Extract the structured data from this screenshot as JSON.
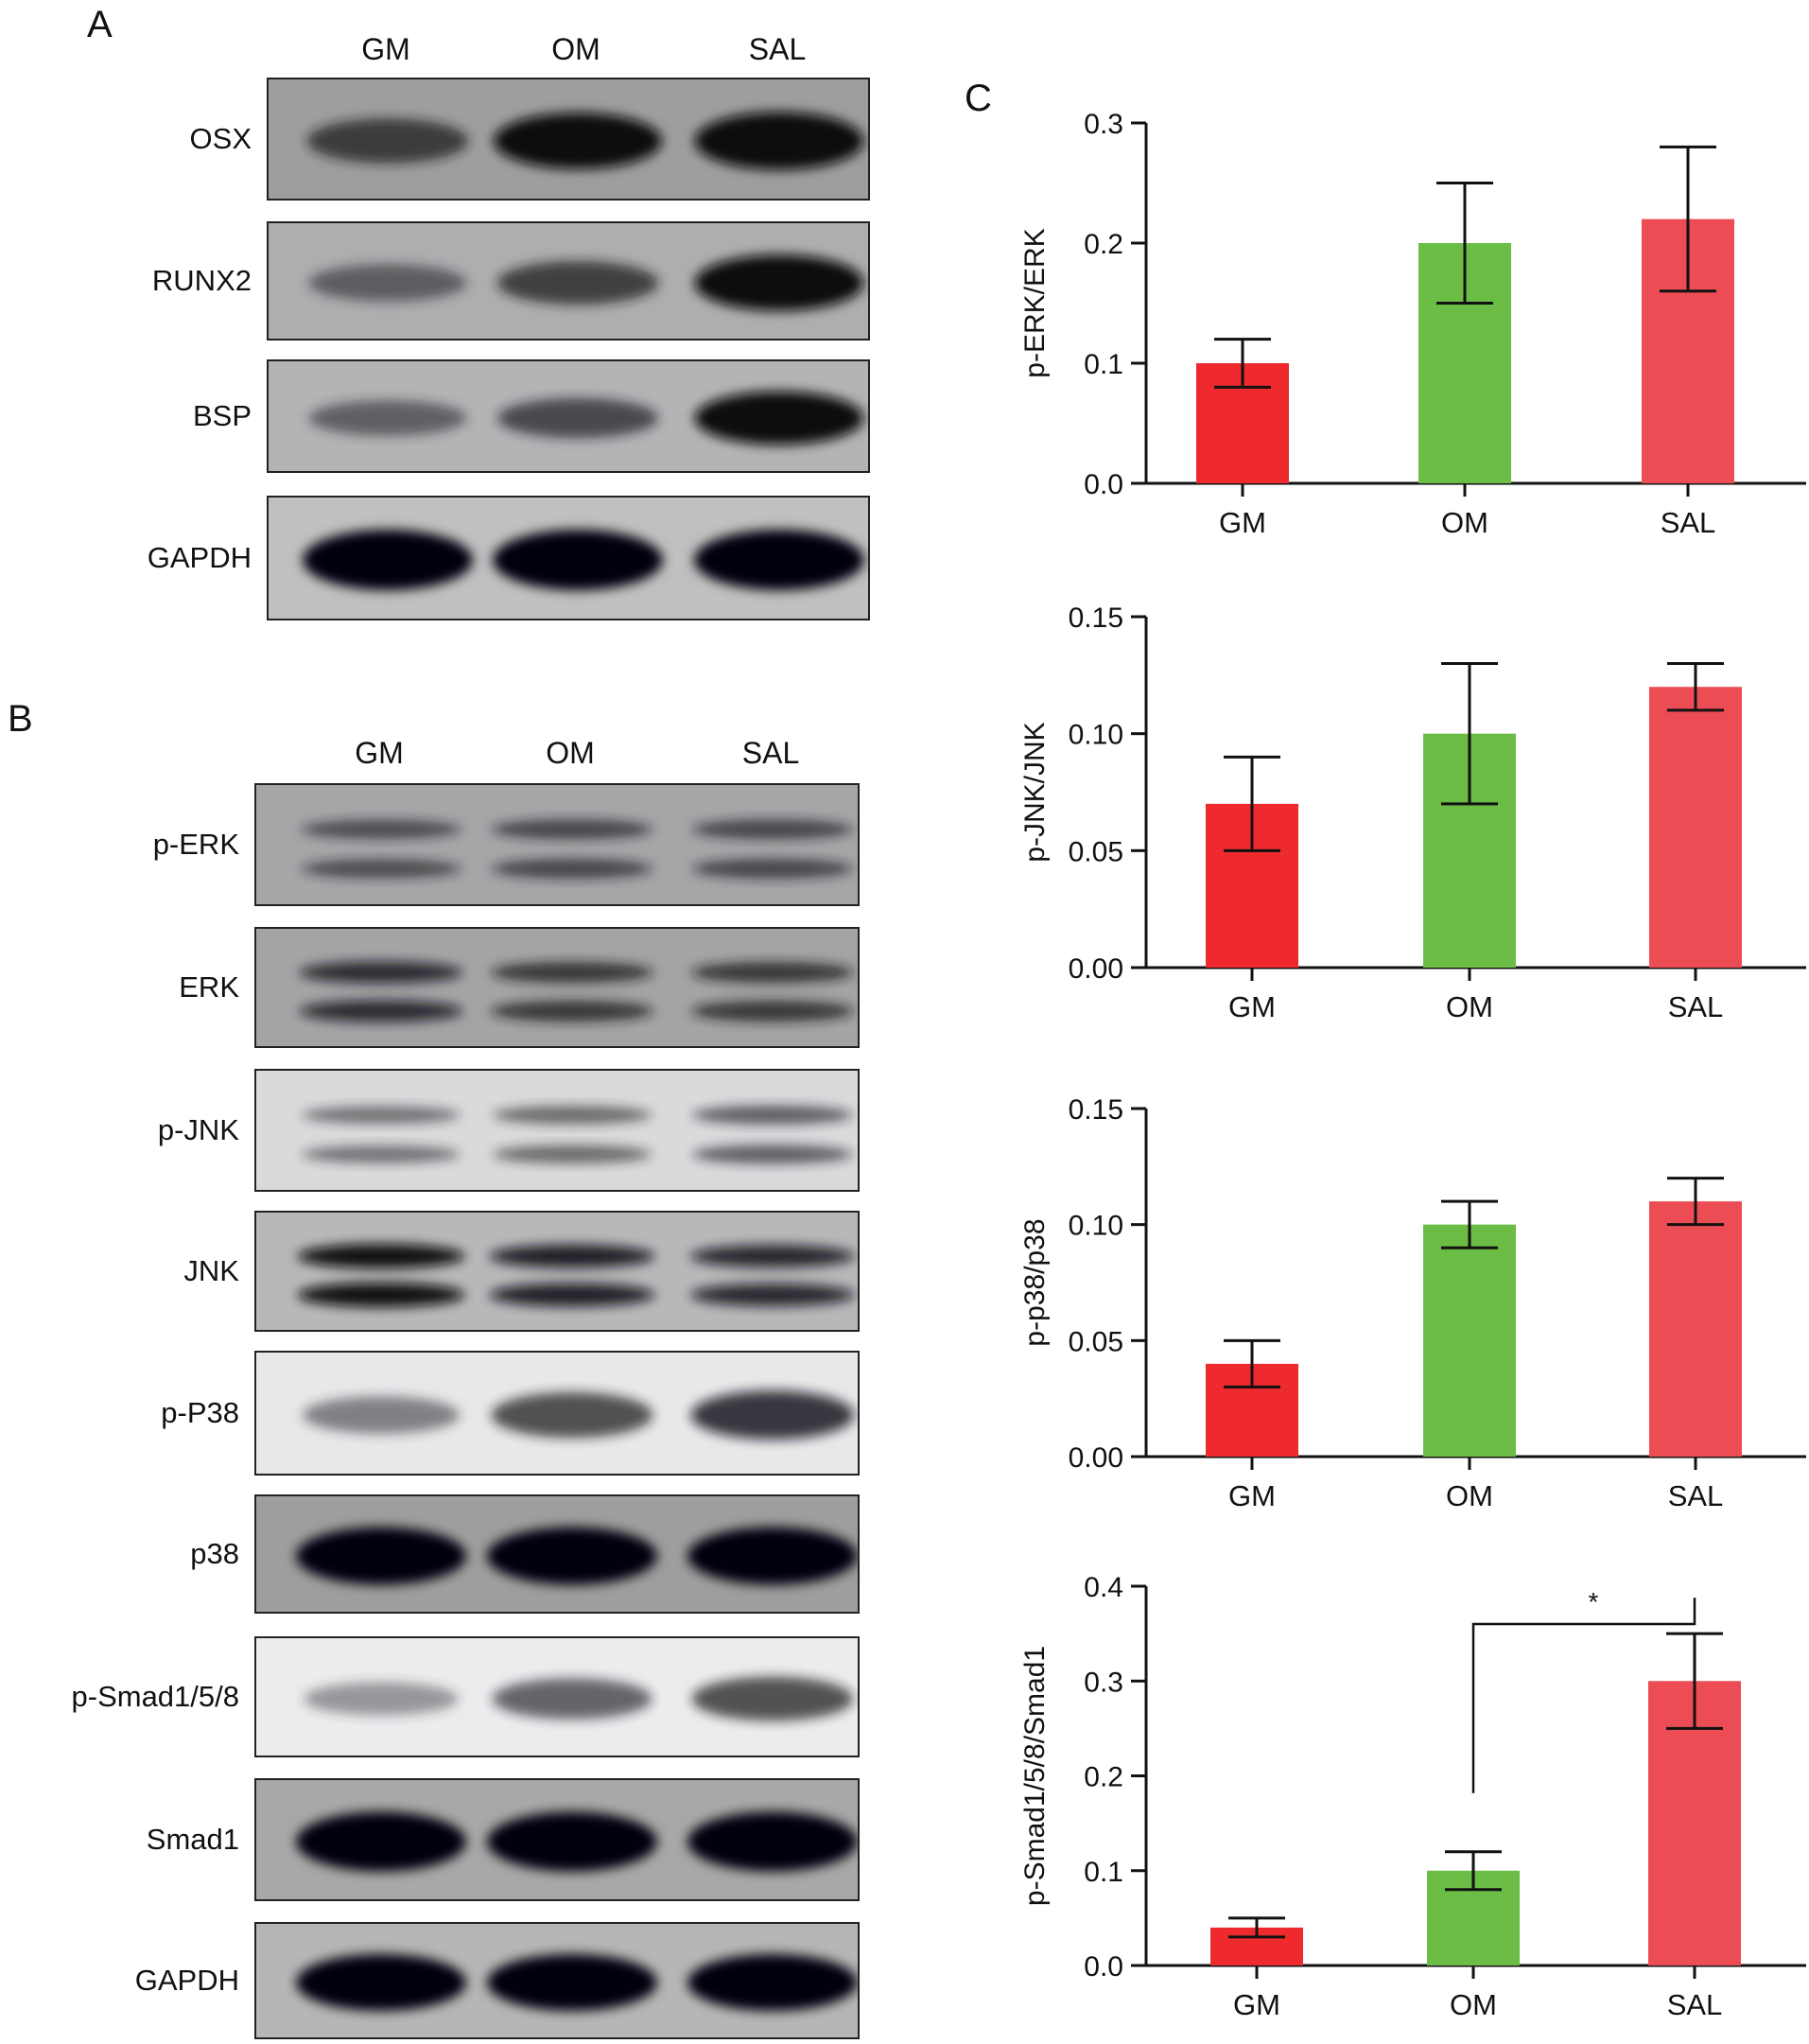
{
  "panels": {
    "a": "A",
    "b": "B",
    "c": "C"
  },
  "lanes": [
    "GM",
    "OM",
    "SAL"
  ],
  "blots_a": [
    {
      "label": "OSX",
      "bg": "#9e9ea0",
      "bands": [
        0.55,
        0.9,
        0.95
      ],
      "rows": 1
    },
    {
      "label": "RUNX2",
      "bg": "#aeaeb0",
      "bands": [
        0.35,
        0.55,
        0.95
      ],
      "rows": 1
    },
    {
      "label": "BSP",
      "bg": "#b4b4b6",
      "bands": [
        0.35,
        0.5,
        0.95
      ],
      "rows": 1
    },
    {
      "label": "GAPDH",
      "bg": "#c0c0c2",
      "bands": [
        1.0,
        1.0,
        1.0
      ],
      "rows": 1
    }
  ],
  "blots_b": [
    {
      "label": "p-ERK",
      "bg": "#a6a6a8",
      "bands": [
        0.45,
        0.5,
        0.5
      ],
      "rows": 2
    },
    {
      "label": "ERK",
      "bg": "#a4a4a6",
      "bands": [
        0.65,
        0.6,
        0.6
      ],
      "rows": 2
    },
    {
      "label": "p-JNK",
      "bg": "#dadadc",
      "bands": [
        0.35,
        0.4,
        0.45
      ],
      "rows": 2
    },
    {
      "label": "JNK",
      "bg": "#b8b8ba",
      "bands": [
        0.85,
        0.75,
        0.7
      ],
      "rows": 2
    },
    {
      "label": "p-P38",
      "bg": "#e8e8ea",
      "bands": [
        0.3,
        0.55,
        0.65
      ],
      "rows": 1
    },
    {
      "label": "p38",
      "bg": "#9e9ea0",
      "bands": [
        1.0,
        1.0,
        1.0
      ],
      "rows": 1
    },
    {
      "label": "p-Smad1/5/8",
      "bg": "#ececee",
      "bands": [
        0.2,
        0.45,
        0.55
      ],
      "rows": 1
    },
    {
      "label": "Smad1",
      "bg": "#a8a8aa",
      "bands": [
        1.0,
        1.0,
        1.0
      ],
      "rows": 1
    },
    {
      "label": "GAPDH",
      "bg": "#b6b6b8",
      "bands": [
        1.0,
        1.0,
        1.0
      ],
      "rows": 1
    }
  ],
  "colors": {
    "GM": "#ee2a2e",
    "OM": "#6cbd45",
    "SAL": "#ec4d55"
  },
  "chart_data": [
    {
      "type": "bar",
      "categories": [
        "GM",
        "OM",
        "SAL"
      ],
      "values": [
        0.1,
        0.2,
        0.22
      ],
      "errors": [
        0.02,
        0.05,
        0.06
      ],
      "ylabel": "p-ERK/ERK",
      "ylim": [
        0,
        0.3
      ],
      "yticks": [
        "0.0",
        "0.1",
        "0.2",
        "0.3"
      ],
      "yticks_values": [
        0,
        0.1,
        0.2,
        0.3
      ],
      "significance": null
    },
    {
      "type": "bar",
      "categories": [
        "GM",
        "OM",
        "SAL"
      ],
      "values": [
        0.07,
        0.1,
        0.12
      ],
      "errors": [
        0.02,
        0.03,
        0.01
      ],
      "ylabel": "p-JNK/JNK",
      "ylim": [
        0,
        0.15
      ],
      "yticks": [
        "0.00",
        "0.05",
        "0.10",
        "0.15"
      ],
      "yticks_values": [
        0,
        0.05,
        0.1,
        0.15
      ],
      "significance": null
    },
    {
      "type": "bar",
      "categories": [
        "GM",
        "OM",
        "SAL"
      ],
      "values": [
        0.04,
        0.1,
        0.11
      ],
      "errors": [
        0.01,
        0.01,
        0.01
      ],
      "ylabel": "p-p38/p38",
      "ylim": [
        0,
        0.15
      ],
      "yticks": [
        "0.00",
        "0.05",
        "0.10",
        "0.15"
      ],
      "yticks_values": [
        0,
        0.05,
        0.1,
        0.15
      ],
      "significance": null
    },
    {
      "type": "bar",
      "categories": [
        "GM",
        "OM",
        "SAL"
      ],
      "values": [
        0.04,
        0.1,
        0.3
      ],
      "errors": [
        0.01,
        0.02,
        0.05
      ],
      "ylabel": "p-Smad1/5/8/Smad1",
      "ylim": [
        0,
        0.4
      ],
      "yticks": [
        "0.0",
        "0.1",
        "0.2",
        "0.3",
        "0.4"
      ],
      "yticks_values": [
        0,
        0.1,
        0.2,
        0.3,
        0.4
      ],
      "significance": {
        "from": "OM",
        "to": "SAL",
        "label": "*"
      }
    }
  ]
}
